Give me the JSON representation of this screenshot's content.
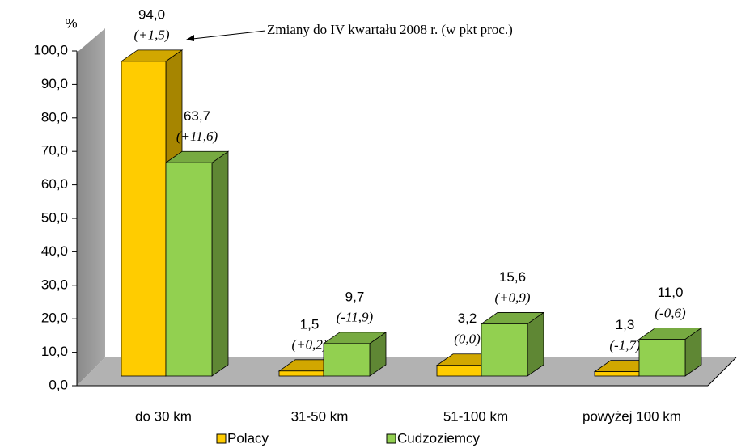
{
  "chart_data": {
    "type": "bar3d",
    "y_unit_label": "%",
    "annotation": "Zmiany do IV kwartału 2008 r. (w pkt proc.)",
    "categories": [
      "do 30 km",
      "31-50 km",
      "51-100 km",
      "powyżej 100 km"
    ],
    "series": [
      {
        "name": "Polacy",
        "color": "#ffcc00",
        "values": [
          94.0,
          1.5,
          3.2,
          1.3
        ],
        "value_labels": [
          "94,0",
          "1,5",
          "3,2",
          "1,3"
        ],
        "change_labels": [
          "(+1,5)",
          "(+0,2)",
          "(0,0)",
          "(-1,7)"
        ]
      },
      {
        "name": "Cudzoziemcy",
        "color": "#92d050",
        "values": [
          63.7,
          9.7,
          15.6,
          11.0
        ],
        "value_labels": [
          "63,7",
          "9,7",
          "15,6",
          "11,0"
        ],
        "change_labels": [
          "(+11,6)",
          "(-11,9)",
          "(+0,9)",
          "(-0,6)"
        ]
      }
    ],
    "ylim": [
      0,
      100
    ],
    "yticks": [
      {
        "value": 0,
        "label": "0,0"
      },
      {
        "value": 10,
        "label": "10,0"
      },
      {
        "value": 20,
        "label": "20,0"
      },
      {
        "value": 30,
        "label": "30,0"
      },
      {
        "value": 40,
        "label": "40,0"
      },
      {
        "value": 50,
        "label": "50,0"
      },
      {
        "value": 60,
        "label": "60,0"
      },
      {
        "value": 70,
        "label": "70,0"
      },
      {
        "value": 80,
        "label": "80,0"
      },
      {
        "value": 90,
        "label": "90,0"
      },
      {
        "value": 100,
        "label": "100,0"
      }
    ],
    "legend": "bottom"
  }
}
